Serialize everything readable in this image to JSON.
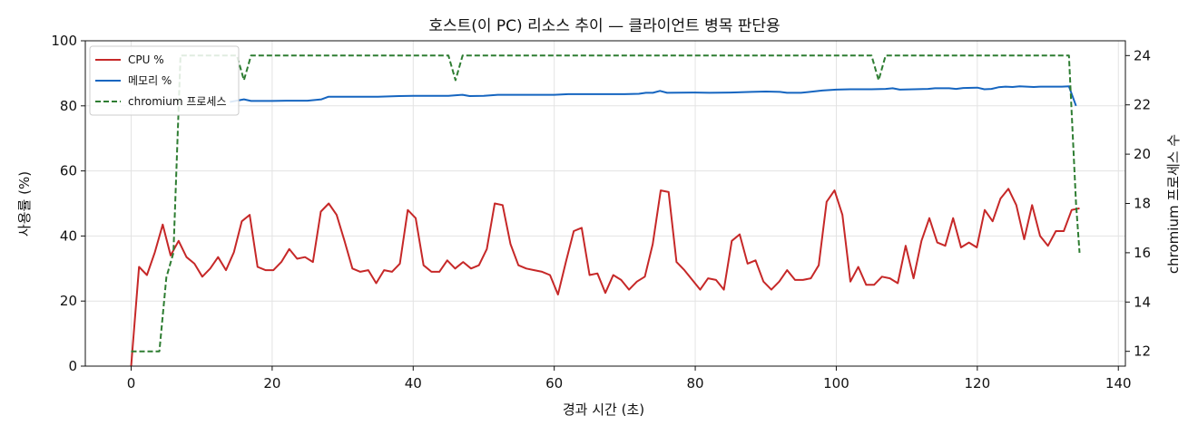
{
  "chart_data": {
    "type": "line",
    "title": "호스트(이 PC) 리소스 추이 — 클라이언트 병목 판단용",
    "xlabel": "경과 시간 (초)",
    "ylabel": "사용률 (%)",
    "y2label": "chromium 프로세스 수",
    "xlim": [
      -6.5,
      141
    ],
    "ylim": [
      0,
      100
    ],
    "y2lim": [
      11.4,
      24.6
    ],
    "xticks": [
      0,
      20,
      40,
      60,
      80,
      100,
      120,
      140
    ],
    "yticks": [
      0,
      20,
      40,
      60,
      80,
      100
    ],
    "y2ticks": [
      12,
      14,
      16,
      18,
      20,
      22,
      24
    ],
    "grid": true,
    "legend_position": "top-left",
    "series": [
      {
        "name": "CPU %",
        "axis": "left",
        "color": "#c62828",
        "style": "solid",
        "points": [
          [
            0,
            0
          ],
          [
            1,
            30.5
          ],
          [
            2,
            28
          ],
          [
            3,
            35
          ],
          [
            4,
            43.5
          ],
          [
            5,
            34
          ],
          [
            6,
            38.5
          ],
          [
            7,
            33.5
          ],
          [
            8,
            31.5
          ],
          [
            9,
            27.5
          ],
          [
            10,
            30
          ],
          [
            11,
            33.5
          ],
          [
            12,
            29.5
          ],
          [
            13,
            35
          ],
          [
            14,
            44.5
          ],
          [
            15,
            46.5
          ],
          [
            16,
            30.5
          ],
          [
            17,
            29.5
          ],
          [
            18,
            29.5
          ],
          [
            19,
            32
          ],
          [
            20,
            36
          ],
          [
            21,
            33
          ],
          [
            22,
            33.5
          ],
          [
            23,
            32
          ],
          [
            24,
            47.5
          ],
          [
            25,
            50
          ],
          [
            26,
            46.5
          ],
          [
            27,
            38.5
          ],
          [
            28,
            30
          ],
          [
            29,
            29
          ],
          [
            30,
            29.5
          ],
          [
            31,
            25.5
          ],
          [
            32,
            29.5
          ],
          [
            33,
            29
          ],
          [
            34,
            31.5
          ],
          [
            35,
            48
          ],
          [
            36,
            45.5
          ],
          [
            37,
            31
          ],
          [
            38,
            29
          ],
          [
            39,
            29
          ],
          [
            40,
            32.5
          ],
          [
            41,
            30
          ],
          [
            42,
            32
          ],
          [
            43,
            30
          ],
          [
            44,
            31
          ],
          [
            45,
            36
          ],
          [
            46,
            50
          ],
          [
            47,
            49.5
          ],
          [
            48,
            37.5
          ],
          [
            49,
            31
          ],
          [
            50,
            30
          ],
          [
            51,
            29.5
          ],
          [
            52,
            29
          ],
          [
            53,
            28
          ],
          [
            54,
            22
          ],
          [
            55,
            32
          ],
          [
            56,
            41.5
          ],
          [
            57,
            42.5
          ],
          [
            58,
            28
          ],
          [
            59,
            28.5
          ],
          [
            60,
            22.5
          ],
          [
            61,
            28
          ],
          [
            62,
            26.5
          ],
          [
            63,
            23.5
          ],
          [
            64,
            26
          ],
          [
            65,
            27.5
          ],
          [
            66,
            37.5
          ],
          [
            67,
            54
          ],
          [
            68,
            53.5
          ],
          [
            69,
            32
          ],
          [
            70,
            29.5
          ],
          [
            71,
            26.5
          ],
          [
            72,
            23.5
          ],
          [
            73,
            27
          ],
          [
            74,
            26.5
          ],
          [
            75,
            23.5
          ],
          [
            76,
            38.5
          ],
          [
            77,
            40.5
          ],
          [
            78,
            31.5
          ],
          [
            79,
            32.5
          ],
          [
            80,
            26
          ],
          [
            81,
            23.5
          ],
          [
            82,
            26
          ],
          [
            83,
            29.5
          ],
          [
            84,
            26.5
          ],
          [
            85,
            26.5
          ],
          [
            86,
            27
          ],
          [
            87,
            31
          ],
          [
            88,
            50.5
          ],
          [
            89,
            54
          ],
          [
            90,
            46.5
          ],
          [
            91,
            26
          ],
          [
            92,
            30.5
          ],
          [
            93,
            25
          ],
          [
            94,
            25
          ],
          [
            95,
            27.5
          ],
          [
            96,
            27
          ],
          [
            97,
            25.5
          ],
          [
            98,
            37
          ],
          [
            99,
            27
          ],
          [
            100,
            38.5
          ],
          [
            101,
            45.5
          ],
          [
            102,
            38
          ],
          [
            103,
            37
          ],
          [
            104,
            45.5
          ],
          [
            105,
            36.5
          ],
          [
            106,
            38
          ],
          [
            107,
            36.5
          ],
          [
            108,
            48
          ],
          [
            109,
            44.5
          ],
          [
            110,
            51.5
          ],
          [
            111,
            54.5
          ],
          [
            112,
            49.5
          ],
          [
            113,
            39
          ],
          [
            114,
            49.5
          ],
          [
            115,
            40
          ],
          [
            116,
            37
          ],
          [
            117,
            41.5
          ],
          [
            118,
            41.5
          ],
          [
            119,
            48
          ],
          [
            120,
            48.5
          ]
        ],
        "x_scale_max": 134.5
      },
      {
        "name": "메모리 %",
        "axis": "left",
        "color": "#1565c0",
        "style": "solid",
        "points": [
          [
            14,
            81.2
          ],
          [
            16,
            82
          ],
          [
            17,
            81.5
          ],
          [
            20,
            81.5
          ],
          [
            22,
            81.6
          ],
          [
            25,
            81.6
          ],
          [
            27,
            82
          ],
          [
            28,
            82.8
          ],
          [
            30,
            82.8
          ],
          [
            35,
            82.8
          ],
          [
            38,
            83
          ],
          [
            40,
            83.1
          ],
          [
            45,
            83.1
          ],
          [
            47,
            83.4
          ],
          [
            48,
            83
          ],
          [
            50,
            83.1
          ],
          [
            52,
            83.4
          ],
          [
            55,
            83.4
          ],
          [
            60,
            83.4
          ],
          [
            62,
            83.6
          ],
          [
            65,
            83.6
          ],
          [
            70,
            83.6
          ],
          [
            72,
            83.7
          ],
          [
            73,
            84
          ],
          [
            74,
            84
          ],
          [
            75,
            84.6
          ],
          [
            76,
            84
          ],
          [
            80,
            84.1
          ],
          [
            82,
            84
          ],
          [
            85,
            84.1
          ],
          [
            88,
            84.3
          ],
          [
            90,
            84.4
          ],
          [
            92,
            84.3
          ],
          [
            93,
            84
          ],
          [
            95,
            84
          ],
          [
            98,
            84.7
          ],
          [
            100,
            85
          ],
          [
            102,
            85.1
          ],
          [
            105,
            85.1
          ],
          [
            107,
            85.2
          ],
          [
            108,
            85.4
          ],
          [
            109,
            85
          ],
          [
            111,
            85.1
          ],
          [
            113,
            85.2
          ],
          [
            114,
            85.4
          ],
          [
            116,
            85.4
          ],
          [
            117,
            85.2
          ],
          [
            118,
            85.5
          ],
          [
            120,
            85.6
          ],
          [
            121,
            85.1
          ],
          [
            122,
            85.2
          ],
          [
            123,
            85.7
          ],
          [
            124,
            85.9
          ],
          [
            125,
            85.8
          ],
          [
            126,
            86
          ],
          [
            128,
            85.8
          ],
          [
            129,
            85.9
          ],
          [
            130,
            85.9
          ],
          [
            131,
            85.9
          ],
          [
            132,
            85.9
          ],
          [
            133,
            86
          ],
          [
            134,
            80
          ]
        ]
      },
      {
        "name": "chromium 프로세스",
        "axis": "right",
        "color": "#2e7d32",
        "style": "dashed",
        "points": [
          [
            0,
            12
          ],
          [
            1,
            12
          ],
          [
            2,
            12
          ],
          [
            3,
            12
          ],
          [
            4,
            12
          ],
          [
            5,
            15
          ],
          [
            6,
            16
          ],
          [
            7,
            24
          ],
          [
            8,
            24
          ],
          [
            14,
            24
          ],
          [
            15,
            24
          ],
          [
            16,
            23
          ],
          [
            17,
            24
          ],
          [
            44,
            24
          ],
          [
            45,
            24
          ],
          [
            46,
            23
          ],
          [
            47,
            24
          ],
          [
            105,
            24
          ],
          [
            106,
            23
          ],
          [
            107,
            24
          ],
          [
            132,
            24
          ],
          [
            133,
            24
          ],
          [
            134,
            18
          ],
          [
            134.5,
            16
          ]
        ]
      }
    ]
  }
}
